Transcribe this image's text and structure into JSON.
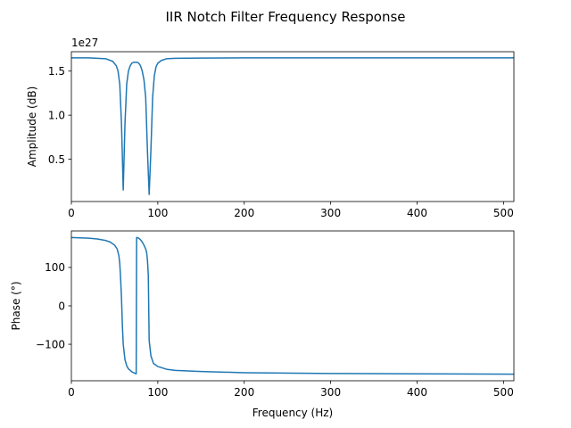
{
  "figure": {
    "title": "IIR Notch Filter Frequency Response",
    "line_color": "#1f77b4"
  },
  "chart_data": [
    {
      "type": "line",
      "xlabel": "",
      "ylabel": "Amplitude (dB)",
      "offset_label": "1e27",
      "xlim": [
        0,
        512
      ],
      "ylim": [
        0.02,
        1.72
      ],
      "x_ticks": [
        0,
        100,
        200,
        300,
        400,
        500
      ],
      "x_tick_labels": [
        "0",
        "100",
        "200",
        "300",
        "400",
        "500"
      ],
      "y_ticks": [
        0.5,
        1.0,
        1.5
      ],
      "y_tick_labels": [
        "0.5",
        "1.0",
        "1.5"
      ],
      "grid": false,
      "series": [
        {
          "x": [
            0,
            20,
            40,
            48,
            52,
            54,
            56,
            58,
            60,
            62,
            64,
            66,
            68,
            70,
            72,
            74,
            76,
            78,
            80,
            82,
            84,
            86,
            88,
            90,
            92,
            94,
            96,
            98,
            100,
            104,
            110,
            120,
            150,
            200,
            300,
            400,
            512
          ],
          "y": [
            1.65,
            1.65,
            1.64,
            1.61,
            1.56,
            1.5,
            1.35,
            0.9,
            0.15,
            0.9,
            1.35,
            1.5,
            1.56,
            1.59,
            1.6,
            1.6,
            1.6,
            1.59,
            1.56,
            1.5,
            1.4,
            1.2,
            0.6,
            0.1,
            0.6,
            1.2,
            1.45,
            1.55,
            1.59,
            1.62,
            1.64,
            1.645,
            1.648,
            1.65,
            1.65,
            1.65,
            1.65
          ]
        }
      ]
    },
    {
      "type": "line",
      "xlabel": "Frequency (Hz)",
      "ylabel": "Phase (°)",
      "xlim": [
        0,
        512
      ],
      "ylim": [
        -195,
        195
      ],
      "x_ticks": [
        0,
        100,
        200,
        300,
        400,
        500
      ],
      "x_tick_labels": [
        "0",
        "100",
        "200",
        "300",
        "400",
        "500"
      ],
      "y_ticks": [
        -100,
        0,
        100
      ],
      "y_tick_labels": [
        "−100",
        "0",
        "100"
      ],
      "grid": false,
      "series": [
        {
          "x": [
            0,
            10,
            20,
            30,
            40,
            45,
            50,
            53,
            55,
            56,
            57,
            58,
            59,
            60,
            62,
            64,
            66,
            68,
            70,
            72,
            74,
            75,
            75.5,
            76,
            78,
            80,
            82,
            84,
            86,
            87,
            88,
            89,
            90,
            92,
            95,
            100,
            110,
            120,
            150,
            200,
            300,
            400,
            512
          ],
          "y": [
            178,
            177,
            176,
            174,
            170,
            166,
            158,
            148,
            130,
            110,
            70,
            20,
            -50,
            -100,
            -140,
            -156,
            -164,
            -168,
            -172,
            -174,
            -176,
            -177,
            178,
            178,
            176,
            172,
            166,
            158,
            148,
            140,
            120,
            80,
            -90,
            -130,
            -150,
            -158,
            -165,
            -168,
            -171,
            -174,
            -176,
            -177,
            -178
          ]
        }
      ]
    }
  ]
}
